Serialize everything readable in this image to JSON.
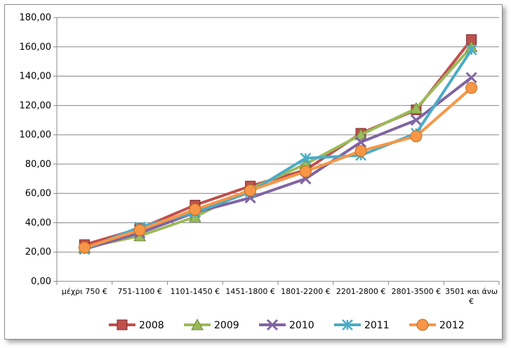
{
  "chart_data": {
    "type": "line",
    "title": "",
    "xlabel": "",
    "ylabel": "",
    "categories": [
      "μέχρι 750 €",
      "751-1100 €",
      "1101-1450 €",
      "1451-1800 €",
      "1801-2200 €",
      "2201-2800 €",
      "2801-3500 €",
      "3501 και άνω €"
    ],
    "category_lines": [
      [
        "μέχρι 750 €"
      ],
      [
        "751-1100 €"
      ],
      [
        "1101-1450 €"
      ],
      [
        "1451-1800 €"
      ],
      [
        "1801-2200 €"
      ],
      [
        "2201-2800 €"
      ],
      [
        "2801-3500 €"
      ],
      [
        "3501 και άνω",
        "€"
      ]
    ],
    "ylim": [
      0,
      180
    ],
    "yticks": [
      "0,00",
      "20,00",
      "40,00",
      "60,00",
      "80,00",
      "100,00",
      "120,00",
      "140,00",
      "160,00",
      "180,00"
    ],
    "grid": true,
    "legend_position": "bottom",
    "series": [
      {
        "name": "2008",
        "color": "#c0504d",
        "marker": "square",
        "values": [
          25,
          36,
          52,
          65,
          76,
          101,
          117,
          165
        ]
      },
      {
        "name": "2009",
        "color": "#9bbb59",
        "marker": "triangle",
        "values": [
          23,
          31,
          44,
          63,
          80,
          100,
          118,
          160
        ]
      },
      {
        "name": "2010",
        "color": "#8064a2",
        "marker": "x",
        "values": [
          22,
          33,
          47,
          57,
          70,
          95,
          110,
          139
        ]
      },
      {
        "name": "2011",
        "color": "#4bacc6",
        "marker": "star",
        "values": [
          22,
          37,
          47,
          61,
          84,
          86,
          101,
          158
        ]
      },
      {
        "name": "2012",
        "color": "#f79646",
        "marker": "circle",
        "values": [
          23,
          35,
          49,
          62,
          75,
          89,
          99,
          132
        ]
      }
    ]
  }
}
